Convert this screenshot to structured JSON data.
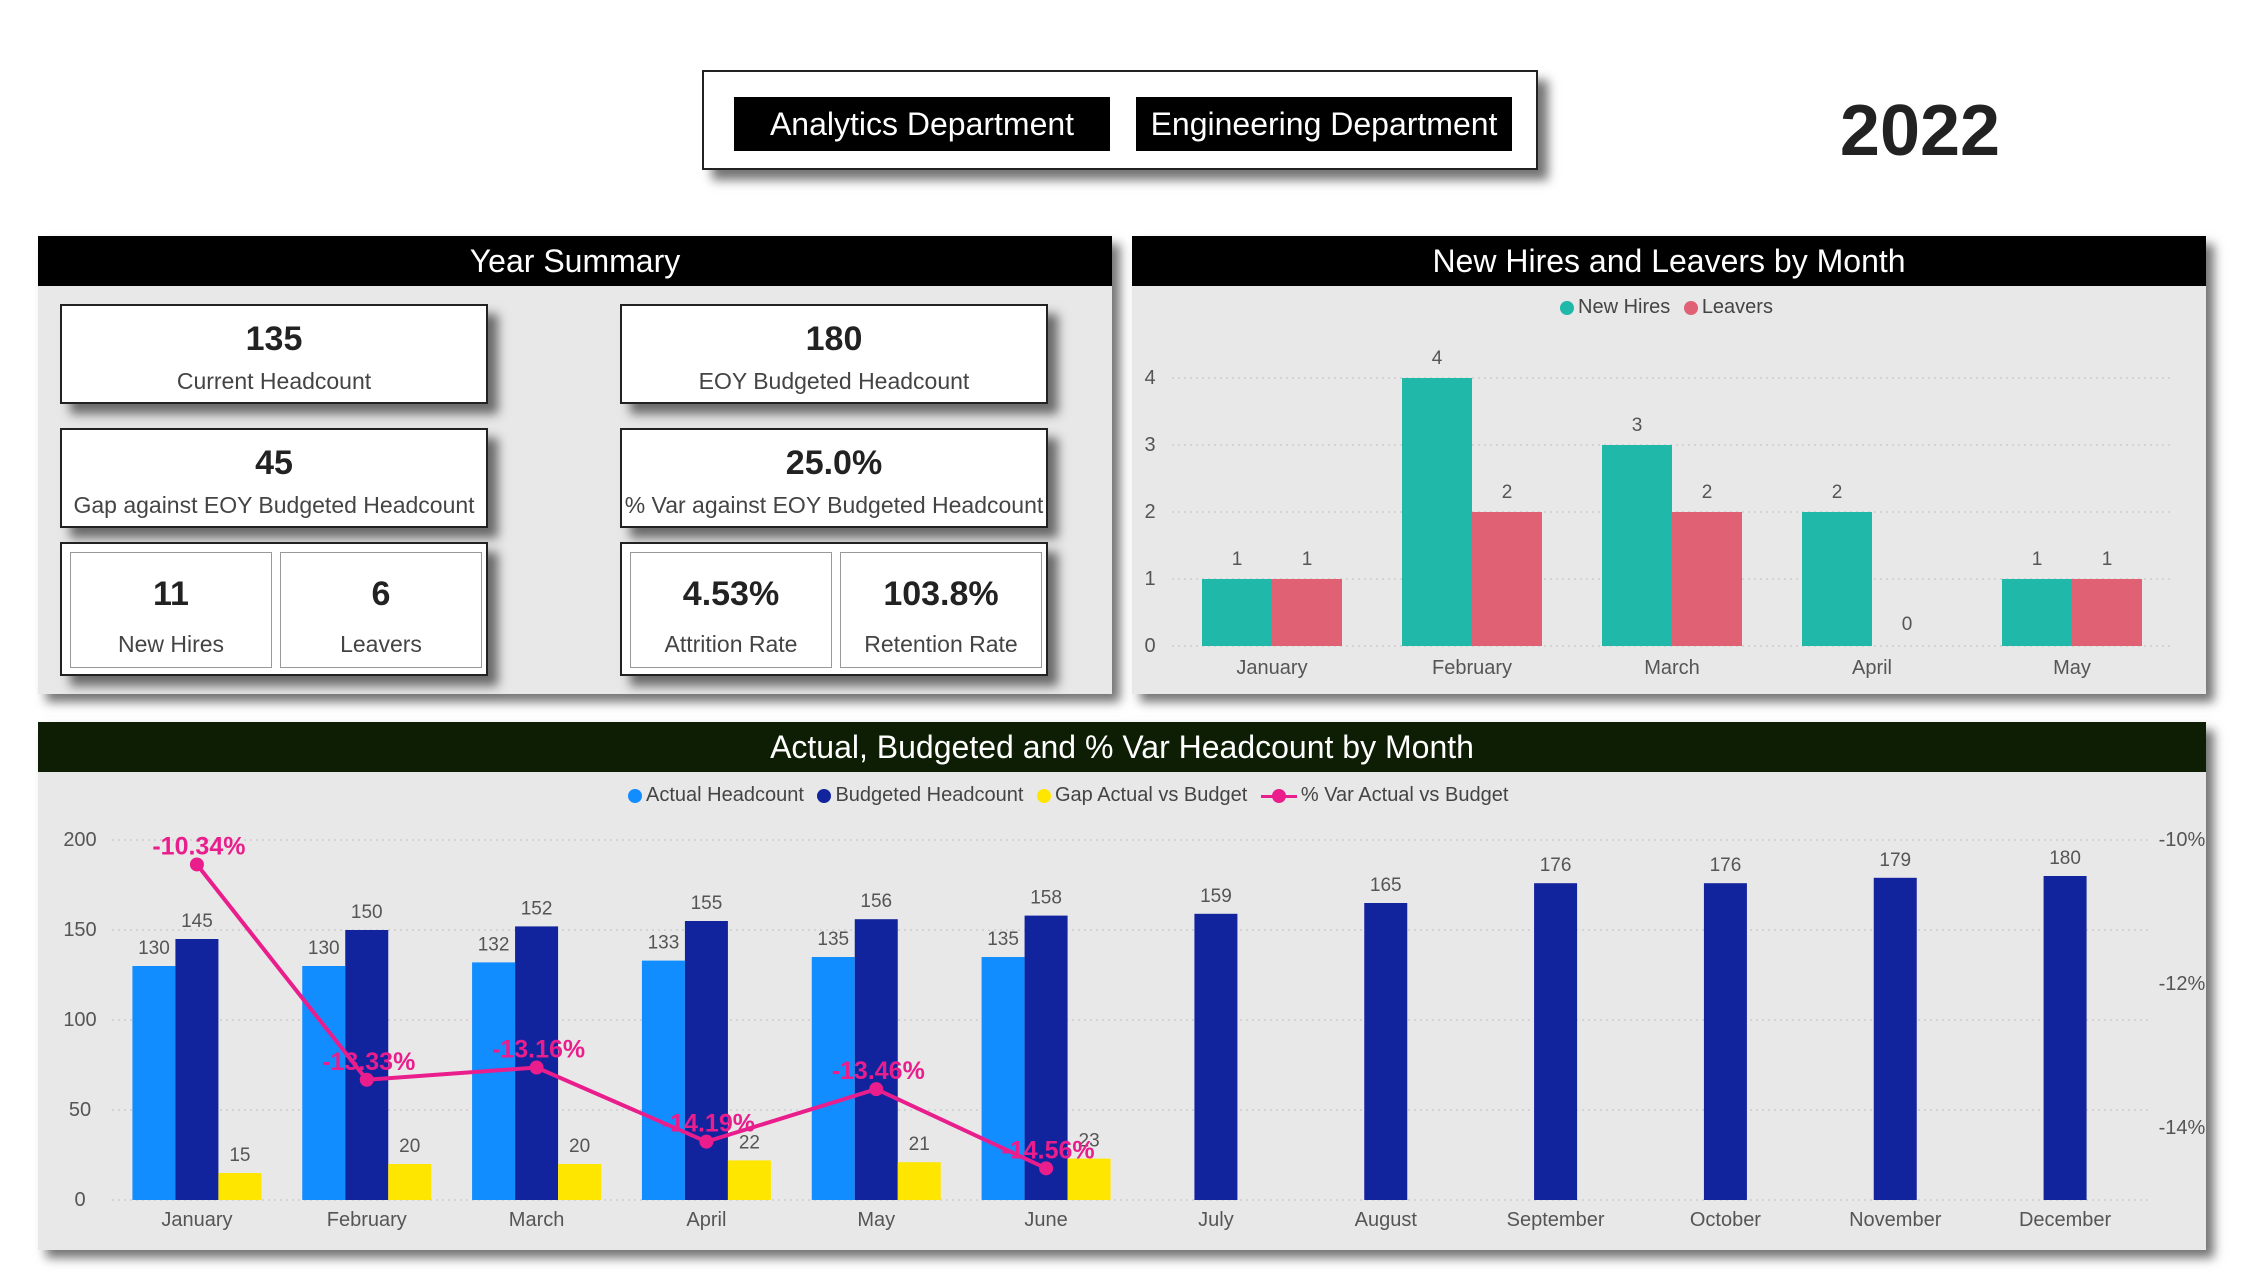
{
  "slicer": {
    "options": [
      "Analytics Department",
      "Engineering Department"
    ]
  },
  "year": "2022",
  "summary": {
    "title": "Year Summary",
    "current_headcount": {
      "value": "135",
      "label": "Current Headcount"
    },
    "eoy_budgeted": {
      "value": "180",
      "label": "EOY Budgeted Headcount"
    },
    "gap": {
      "value": "45",
      "label": "Gap against EOY Budgeted Headcount"
    },
    "var": {
      "value": "25.0%",
      "label": "% Var against EOY Budgeted Headcount"
    },
    "new_hires": {
      "value": "11",
      "label": "New Hires"
    },
    "leavers": {
      "value": "6",
      "label": "Leavers"
    },
    "attrition": {
      "value": "4.53%",
      "label": "Attrition Rate"
    },
    "retention": {
      "value": "103.8%",
      "label": "Retention Rate"
    }
  },
  "hires_panel": {
    "title": "New Hires and Leavers by Month",
    "legend": [
      "New Hires",
      "Leavers"
    ]
  },
  "headcount_panel": {
    "title": "Actual, Budgeted and % Var Headcount by Month",
    "legend": [
      "Actual Headcount",
      "Budgeted Headcount",
      "Gap Actual vs Budget",
      "% Var Actual vs Budget"
    ]
  },
  "colors": {
    "new_hires": "#20b8a8",
    "leavers": "#e06074",
    "actual": "#118dff",
    "budgeted": "#12239e",
    "gap": "#ffe600",
    "var": "#e91e8c"
  },
  "chart_data": [
    {
      "type": "bar",
      "title": "New Hires and Leavers by Month",
      "categories": [
        "January",
        "February",
        "March",
        "April",
        "May"
      ],
      "series": [
        {
          "name": "New Hires",
          "values": [
            1,
            4,
            3,
            2,
            1
          ]
        },
        {
          "name": "Leavers",
          "values": [
            1,
            2,
            2,
            0,
            1
          ]
        }
      ],
      "ylim": [
        0,
        4
      ],
      "yticks": [
        "0",
        "1",
        "2",
        "3",
        "4"
      ],
      "xlabel": "",
      "ylabel": ""
    },
    {
      "type": "bar",
      "title": "Actual, Budgeted and % Var Headcount by Month",
      "categories": [
        "January",
        "February",
        "March",
        "April",
        "May",
        "June",
        "July",
        "August",
        "September",
        "October",
        "November",
        "December"
      ],
      "series": [
        {
          "name": "Actual Headcount",
          "values": [
            130,
            130,
            132,
            133,
            135,
            135,
            null,
            null,
            null,
            null,
            null,
            null
          ]
        },
        {
          "name": "Budgeted Headcount",
          "values": [
            145,
            150,
            152,
            155,
            156,
            158,
            159,
            165,
            176,
            176,
            179,
            180
          ]
        },
        {
          "name": "Gap Actual vs Budget",
          "values": [
            15,
            20,
            20,
            22,
            21,
            23,
            null,
            null,
            null,
            null,
            null,
            null
          ]
        },
        {
          "name": "% Var Actual vs Budget",
          "type": "line",
          "axis": "right",
          "values": [
            -10.34,
            -13.33,
            -13.16,
            -14.19,
            -13.46,
            -14.56,
            null,
            null,
            null,
            null,
            null,
            null
          ],
          "labels": [
            "-10.34%",
            "-13.33%",
            "-13.16%",
            "-14.19%",
            "-13.46%",
            "-14.56%"
          ]
        }
      ],
      "ylim": [
        0,
        200
      ],
      "yticks": [
        "0",
        "50",
        "100",
        "150",
        "200"
      ],
      "y2lim": [
        -15,
        -10
      ],
      "y2ticks": [
        "-10%",
        "-12%",
        "-14%"
      ],
      "xlabel": "",
      "ylabel": ""
    }
  ]
}
